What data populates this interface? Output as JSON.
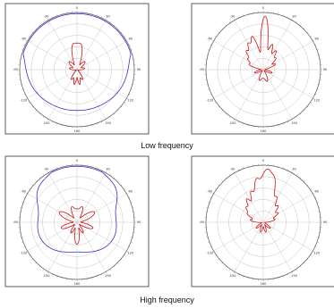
{
  "captions": {
    "top": "Low frequency",
    "bottom": "High frequency"
  },
  "colors": {
    "blue": "#3333cc",
    "red": "#c81414",
    "grid": "#b4b4b4",
    "frame": "#333333"
  },
  "chart_data": [
    {
      "type": "polar",
      "group": "Low frequency",
      "r_rings": 5,
      "angle_labels": [
        "0",
        "30",
        "60",
        "90",
        "120",
        "150",
        "180",
        "-150",
        "-120",
        "-90",
        "-60",
        "-30"
      ],
      "series": [
        {
          "color": "blue",
          "lobes": [
            [
              0,
              0.62,
              42,
              0.16
            ],
            [
              100,
              0.52,
              56,
              0.14
            ],
            [
              -100,
              0.52,
              56,
              0.14
            ],
            [
              45,
              0.22,
              18,
              0.02
            ],
            [
              -45,
              0.22,
              18,
              0.02
            ],
            [
              180,
              0.1,
              30,
              0
            ]
          ]
        },
        {
          "color": "red",
          "lobes": [
            [
              0,
              0.28,
              10,
              0
            ],
            [
              12,
              0.26,
              8,
              0
            ],
            [
              -12,
              0.26,
              8,
              0
            ],
            [
              45,
              0.18,
              10,
              0
            ],
            [
              -45,
              0.18,
              10,
              0
            ],
            [
              150,
              0.18,
              8,
              0
            ],
            [
              -150,
              0.18,
              8,
              0
            ],
            [
              170,
              0.24,
              6,
              0
            ],
            [
              -170,
              0.24,
              6,
              0
            ],
            [
              80,
              0.12,
              10,
              0
            ],
            [
              -80,
              0.12,
              10,
              0
            ]
          ]
        }
      ]
    },
    {
      "type": "polar",
      "group": "Low frequency",
      "r_rings": 5,
      "angle_labels": [
        "0",
        "30",
        "60",
        "90",
        "120",
        "150",
        "180",
        "-150",
        "-120",
        "-90",
        "-60",
        "-30"
      ],
      "series": [
        {
          "color": "red",
          "lobes": [
            [
              2,
              0.9,
              6,
              0.02
            ],
            [
              -18,
              0.55,
              5,
              0
            ],
            [
              -30,
              0.45,
              5,
              0
            ],
            [
              -42,
              0.36,
              5,
              0
            ],
            [
              -55,
              0.28,
              6,
              0
            ],
            [
              -70,
              0.22,
              6,
              0
            ],
            [
              20,
              0.42,
              5,
              0
            ],
            [
              34,
              0.34,
              5,
              0
            ],
            [
              48,
              0.26,
              6,
              0
            ],
            [
              66,
              0.2,
              6,
              0
            ],
            [
              -110,
              0.14,
              8,
              0
            ],
            [
              110,
              0.14,
              8,
              0
            ],
            [
              160,
              0.18,
              8,
              0
            ],
            [
              -160,
              0.16,
              8,
              0
            ],
            [
              180,
              0.12,
              10,
              0
            ]
          ]
        }
      ]
    },
    {
      "type": "polar",
      "group": "High frequency",
      "r_rings": 5,
      "angle_labels": [
        "0",
        "30",
        "60",
        "90",
        "120",
        "150",
        "180",
        "-150",
        "-120",
        "-90",
        "-60",
        "-30"
      ],
      "series": [
        {
          "color": "blue",
          "lobes": [
            [
              0,
              0.8,
              36,
              0.08
            ],
            [
              110,
              0.48,
              48,
              0.1
            ],
            [
              -110,
              0.48,
              48,
              0.1
            ],
            [
              50,
              0.15,
              14,
              0.02
            ],
            [
              -50,
              0.15,
              14,
              0.02
            ]
          ]
        },
        {
          "color": "red",
          "lobes": [
            [
              0,
              0.2,
              10,
              0
            ],
            [
              20,
              0.24,
              8,
              0
            ],
            [
              -20,
              0.24,
              8,
              0
            ],
            [
              60,
              0.34,
              12,
              0
            ],
            [
              -60,
              0.34,
              12,
              0
            ],
            [
              110,
              0.28,
              10,
              0
            ],
            [
              -110,
              0.28,
              10,
              0
            ],
            [
              150,
              0.2,
              8,
              0
            ],
            [
              -150,
              0.2,
              8,
              0
            ],
            [
              175,
              0.26,
              6,
              0
            ],
            [
              -175,
              0.26,
              6,
              0
            ]
          ]
        }
      ]
    },
    {
      "type": "polar",
      "group": "High frequency",
      "r_rings": 5,
      "angle_labels": [
        "0",
        "30",
        "60",
        "90",
        "120",
        "150",
        "180",
        "-150",
        "-120",
        "-90",
        "-60",
        "-30"
      ],
      "series": [
        {
          "color": "red",
          "lobes": [
            [
              4,
              0.86,
              7,
              0.02
            ],
            [
              -10,
              0.58,
              5,
              0
            ],
            [
              -22,
              0.5,
              5,
              0
            ],
            [
              -35,
              0.42,
              5,
              0
            ],
            [
              -48,
              0.34,
              6,
              0
            ],
            [
              -62,
              0.26,
              6,
              0
            ],
            [
              -80,
              0.2,
              7,
              0
            ],
            [
              16,
              0.5,
              5,
              0
            ],
            [
              28,
              0.42,
              5,
              0
            ],
            [
              42,
              0.34,
              6,
              0
            ],
            [
              58,
              0.26,
              6,
              0
            ],
            [
              76,
              0.18,
              7,
              0
            ],
            [
              -130,
              0.14,
              8,
              0
            ],
            [
              130,
              0.14,
              8,
              0
            ],
            [
              165,
              0.16,
              8,
              0
            ],
            [
              -165,
              0.16,
              8,
              0
            ]
          ]
        }
      ]
    }
  ]
}
